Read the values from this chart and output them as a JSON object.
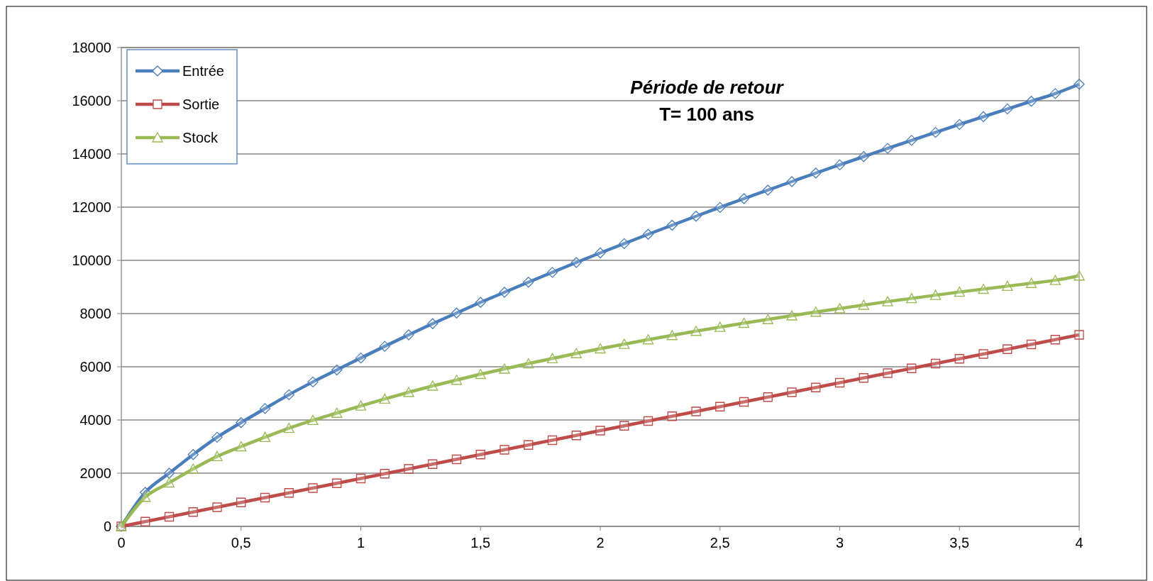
{
  "chart_data": {
    "type": "line",
    "title": "Période de retour",
    "subtitle": "T= 100 ans",
    "x": [
      0,
      0.1,
      0.2,
      0.3,
      0.4,
      0.5,
      0.6,
      0.7,
      0.8,
      0.9,
      1,
      1.1,
      1.2,
      1.3,
      1.4,
      1.5,
      1.6,
      1.7,
      1.8,
      1.9,
      2,
      2.1,
      2.2,
      2.3,
      2.4,
      2.5,
      2.6,
      2.7,
      2.8,
      2.9,
      3,
      3.1,
      3.2,
      3.3,
      3.4,
      3.5,
      3.6,
      3.7,
      3.8,
      3.9,
      4
    ],
    "series": [
      {
        "name": "Entrée",
        "color": "#4a7ebb",
        "marker": "diamond",
        "values": [
          0,
          1280,
          2000,
          2700,
          3350,
          3900,
          4430,
          4950,
          5430,
          5880,
          6330,
          6770,
          7200,
          7620,
          8020,
          8420,
          8800,
          9180,
          9550,
          9920,
          10280,
          10630,
          10980,
          11320,
          11660,
          11990,
          12320,
          12640,
          12960,
          13280,
          13590,
          13900,
          14210,
          14510,
          14810,
          15110,
          15400,
          15690,
          15980,
          16270,
          16620
        ]
      },
      {
        "name": "Sortie",
        "color": "#be4b48",
        "marker": "square",
        "values": [
          0,
          180,
          360,
          540,
          720,
          900,
          1080,
          1260,
          1440,
          1620,
          1800,
          1980,
          2160,
          2340,
          2520,
          2700,
          2880,
          3060,
          3240,
          3420,
          3600,
          3780,
          3960,
          4140,
          4320,
          4500,
          4680,
          4860,
          5040,
          5220,
          5400,
          5580,
          5760,
          5940,
          6120,
          6300,
          6480,
          6660,
          6840,
          7020,
          7200
        ]
      },
      {
        "name": "Stock",
        "color": "#98b954",
        "marker": "triangle",
        "values": [
          0,
          1100,
          1640,
          2160,
          2630,
          3000,
          3350,
          3690,
          3990,
          4260,
          4530,
          4790,
          5040,
          5280,
          5500,
          5720,
          5920,
          6120,
          6310,
          6500,
          6680,
          6850,
          7020,
          7180,
          7340,
          7490,
          7640,
          7780,
          7920,
          8060,
          8190,
          8320,
          8450,
          8570,
          8690,
          8810,
          8920,
          9030,
          9140,
          9250,
          9420
        ]
      }
    ],
    "xlim": [
      0,
      4
    ],
    "xticks": [
      0,
      {
        "value": 0.5,
        "label": "0,5"
      },
      1,
      {
        "value": 1.5,
        "label": "1,5"
      },
      2,
      {
        "value": 2.5,
        "label": "2,5"
      },
      3,
      {
        "value": 3.5,
        "label": "3,5"
      },
      4
    ],
    "ylim": [
      0,
      18000
    ],
    "yticks": [
      0,
      2000,
      4000,
      6000,
      8000,
      10000,
      12000,
      14000,
      16000,
      18000
    ],
    "grid": "y",
    "legend": "top left",
    "line_style": "solid"
  }
}
